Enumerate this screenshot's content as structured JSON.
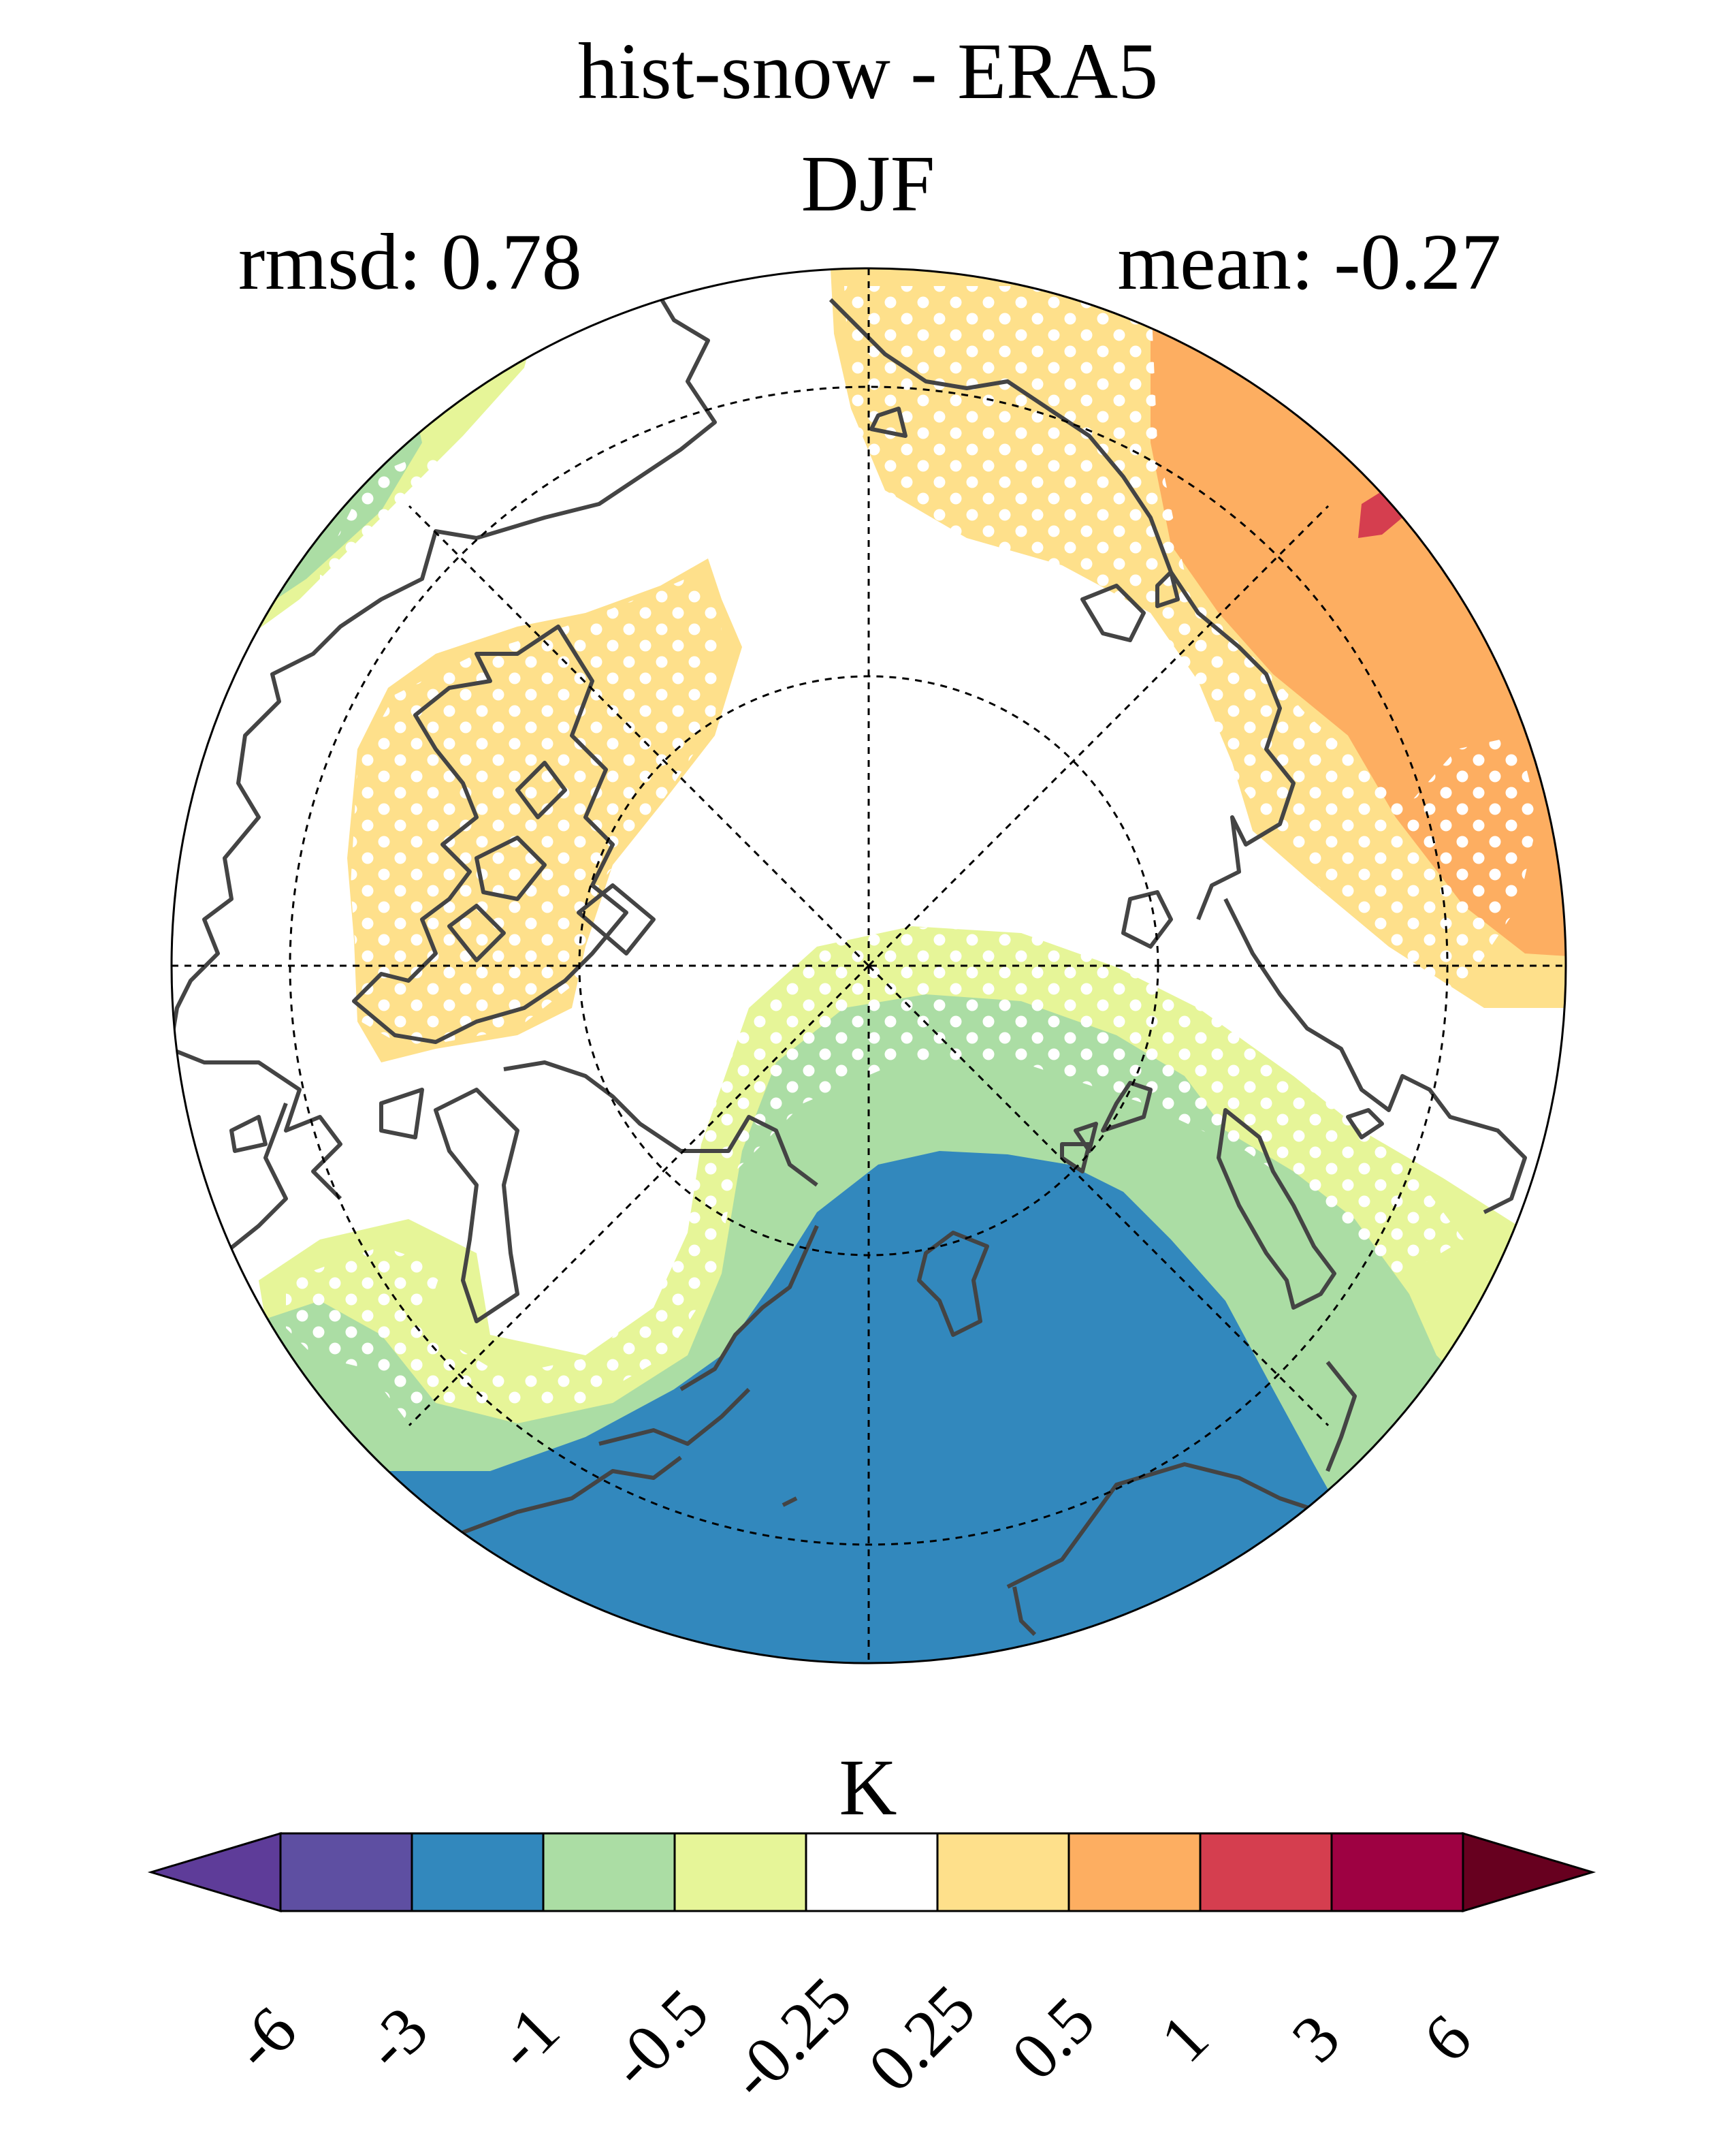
{
  "title": "hist-snow - ERA5",
  "season": "DJF",
  "stats": {
    "rmsd": "rmsd: 0.78",
    "mean": "mean: -0.27"
  },
  "colorbar": {
    "unit": "K",
    "tick_labels": [
      "-6",
      "-3",
      "-1",
      "-0.5",
      "-0.25",
      "0.25",
      "0.5",
      "1",
      "3",
      "6"
    ],
    "bins": [
      {
        "range": "< -6",
        "color": "#5e3c99"
      },
      {
        "range": "-6 to -3",
        "color": "#5e4fa2"
      },
      {
        "range": "-3 to -1",
        "color": "#3288bd"
      },
      {
        "range": "-1 to -0.5",
        "color": "#abdda4"
      },
      {
        "range": "-0.5 to -0.25",
        "color": "#e6f598"
      },
      {
        "range": "-0.25 to 0.25",
        "color": "#ffffff"
      },
      {
        "range": "0.25 to 0.5",
        "color": "#fee08b"
      },
      {
        "range": "0.5 to 1",
        "color": "#fdae61"
      },
      {
        "range": "1 to 3",
        "color": "#d53e4f"
      },
      {
        "range": "3 to 6",
        "color": "#9e0142"
      },
      {
        "range": "> 6",
        "color": "#67001f"
      }
    ]
  },
  "map": {
    "projection": "north-polar-stereographic",
    "stippling": "white dots mark significant differences",
    "coastline_color": "#444444",
    "grid_color": "#000000"
  }
}
